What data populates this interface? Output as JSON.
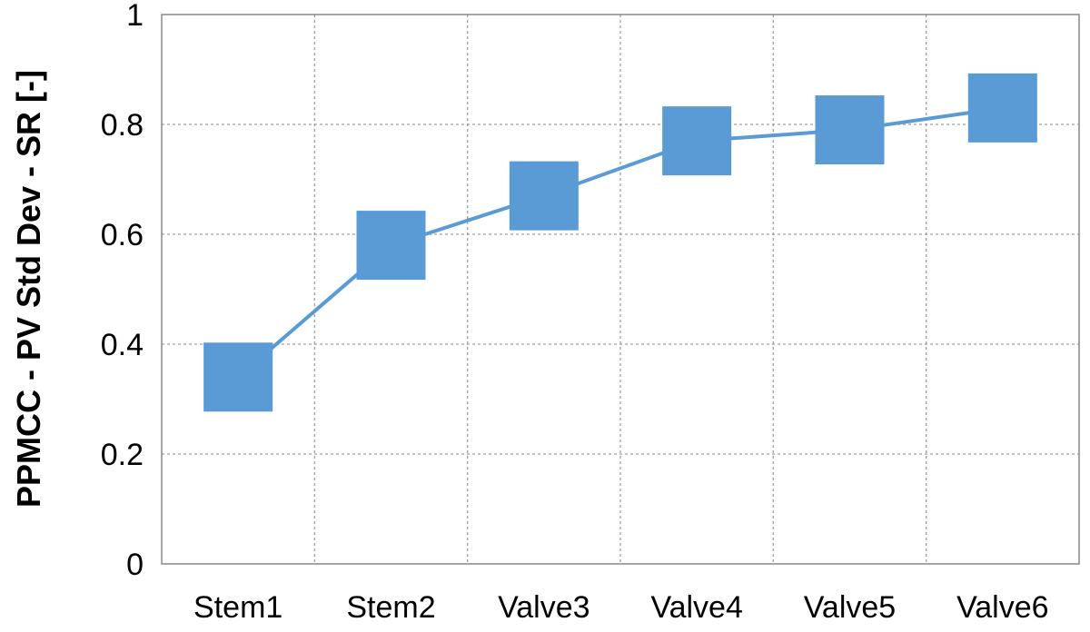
{
  "chart_data": {
    "type": "line",
    "title": "",
    "xlabel": "",
    "ylabel": "PPMCC - PV Std Dev - SR [-]",
    "categories": [
      "Stem1",
      "Stem2",
      "Valve3",
      "Valve4",
      "Valve5",
      "Valve6"
    ],
    "series": [
      {
        "values": [
          0.34,
          0.58,
          0.67,
          0.77,
          0.79,
          0.83
        ],
        "color": "#5B9BD5",
        "marker": "square"
      }
    ],
    "ylim": [
      0,
      1
    ],
    "yticks": [
      0,
      0.2,
      0.4,
      0.6,
      0.8,
      1
    ],
    "ytick_labels": [
      "0",
      "0.2",
      "0.4",
      "0.6",
      "0.8",
      "1"
    ],
    "grid": true,
    "legend": "none"
  }
}
